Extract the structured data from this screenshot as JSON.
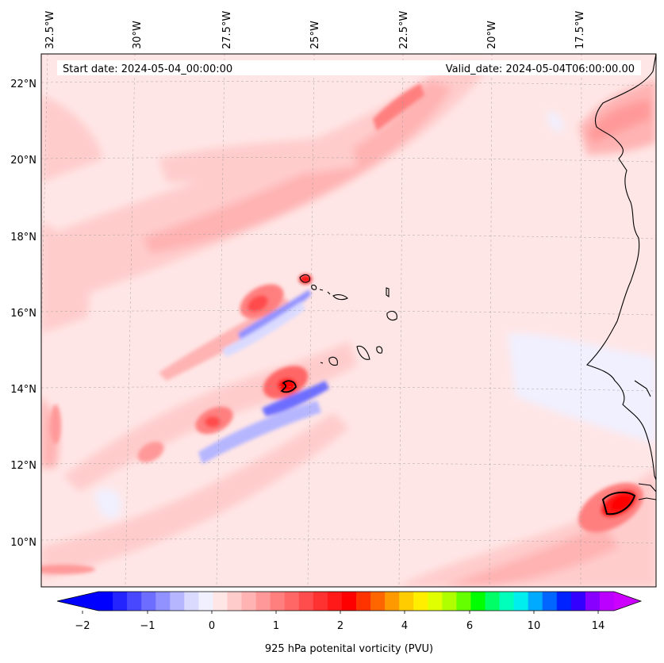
{
  "map": {
    "start_date_text": "Start date: 2024-05-04_00:00:00",
    "valid_date_text": "Valid_date: 2024-05-04T06:00:00.00",
    "lon_labels": [
      "32.5°W",
      "30°W",
      "27.5°W",
      "25°W",
      "22.5°W",
      "20°W",
      "17.5°W"
    ],
    "lat_labels": [
      "22°N",
      "20°N",
      "18°N",
      "16°N",
      "14°N",
      "12°N",
      "10°N"
    ],
    "extent": {
      "lon_min": -32.7,
      "lon_max": -15.0,
      "lat_min": 8.9,
      "lat_max": 22.8
    },
    "gridlines": true
  },
  "colorbar": {
    "title": "925 hPa potenital vorticity (PVU)",
    "tick_labels": [
      "−2",
      "−1",
      "0",
      "1",
      "2",
      "4",
      "6",
      "10",
      "14"
    ],
    "colors": [
      "#0000ff",
      "#2424ff",
      "#4848ff",
      "#6d6dff",
      "#9191ff",
      "#b6b6ff",
      "#dadaff",
      "#f0f0ff",
      "#ffe6e6",
      "#ffcccc",
      "#ffb3b3",
      "#ff9999",
      "#ff7f7f",
      "#ff6666",
      "#ff4c4c",
      "#ff3232",
      "#ff1919",
      "#ff0000",
      "#ff3300",
      "#ff6600",
      "#ff9900",
      "#ffcc00",
      "#ffee00",
      "#e0ff00",
      "#b0ff00",
      "#66ff00",
      "#00ff00",
      "#00ff66",
      "#00ffbb",
      "#00eeee",
      "#00aaff",
      "#0066ff",
      "#0022ff",
      "#3300ff",
      "#8800ff",
      "#bb00ff"
    ],
    "extend_min_color": "#0000ff",
    "extend_max_color": "#cc00ff"
  }
}
